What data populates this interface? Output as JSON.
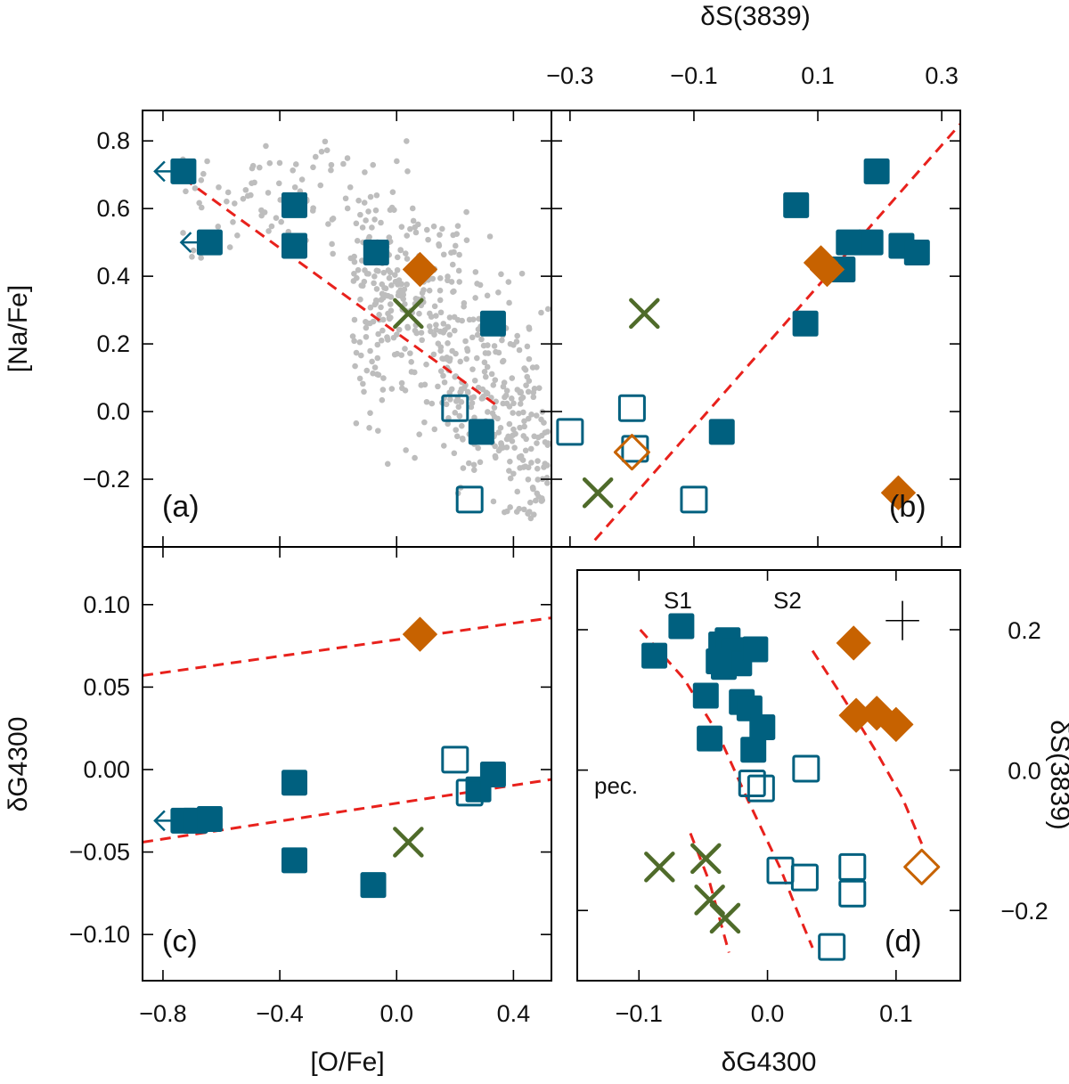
{
  "colors": {
    "blue": "#00607F",
    "orange": "#C76200",
    "green": "#4F6B2A",
    "grey": "#BDBDBD",
    "fit": "#E8211C",
    "frame": "#000000"
  },
  "chart_data": [
    {
      "id": "a",
      "type": "scatter",
      "panel_label": "(a)",
      "xlabel": "[O/Fe]",
      "ylabel": "[Na/Fe]",
      "xlim": [
        -0.87,
        0.53
      ],
      "ylim": [
        -0.4,
        0.89
      ],
      "xticks": [
        -0.8,
        -0.4,
        0.0,
        0.4
      ],
      "xtick_labels": [
        "−0.8",
        "−0.4",
        "0.0",
        "0.4"
      ],
      "yticks": [
        -0.2,
        0.0,
        0.2,
        0.4,
        0.6,
        0.8
      ],
      "ytick_labels": [
        "−0.2",
        "0.0",
        "0.2",
        "0.4",
        "0.6",
        "0.8"
      ],
      "grid": false,
      "series": [
        {
          "marker": "dot",
          "color": "grey",
          "x": [],
          "y": []
        },
        {
          "marker": "filled-square",
          "color": "blue",
          "x": [
            -0.73,
            -0.64,
            -0.35,
            -0.35,
            -0.07,
            0.29,
            0.33
          ],
          "y": [
            0.71,
            0.5,
            0.61,
            0.49,
            0.47,
            -0.06,
            0.26
          ]
        },
        {
          "marker": "open-square",
          "color": "blue",
          "x": [
            0.2,
            0.25
          ],
          "y": [
            0.01,
            -0.26
          ]
        },
        {
          "marker": "filled-diamond",
          "color": "orange",
          "x": [
            0.08
          ],
          "y": [
            0.42
          ]
        },
        {
          "marker": "cross",
          "color": "green",
          "x": [
            0.04
          ],
          "y": [
            0.29
          ]
        }
      ],
      "upper_limits": [
        {
          "x": -0.73,
          "y": 0.71
        },
        {
          "x": -0.64,
          "y": 0.5
        }
      ],
      "fit_lines": [
        [
          [
            -0.73,
            0.69
          ],
          [
            0.34,
            0.02
          ]
        ]
      ]
    },
    {
      "id": "b",
      "type": "scatter",
      "panel_label": "(b)",
      "xlabel_top": "δS(3839)",
      "xlim": [
        -0.33,
        0.33
      ],
      "ylim": [
        -0.4,
        0.89
      ],
      "xticks": [
        -0.3,
        -0.1,
        0.1,
        0.3
      ],
      "xtick_labels": [
        "−0.3",
        "−0.1",
        "0.1",
        "0.3"
      ],
      "grid": false,
      "series": [
        {
          "marker": "filled-square",
          "color": "blue",
          "x": [
            -0.055,
            0.065,
            0.08,
            0.14,
            0.185,
            0.195,
            0.235,
            0.26,
            0.15
          ],
          "y": [
            -0.06,
            0.61,
            0.26,
            0.42,
            0.5,
            0.71,
            0.49,
            0.47,
            0.5
          ]
        },
        {
          "marker": "open-square",
          "color": "blue",
          "x": [
            -0.3,
            -0.2,
            -0.195,
            -0.1
          ],
          "y": [
            -0.06,
            0.01,
            -0.11,
            -0.26
          ]
        },
        {
          "marker": "filled-diamond",
          "color": "orange",
          "x": [
            0.105,
            0.115,
            0.23
          ],
          "y": [
            0.44,
            0.42,
            -0.24
          ]
        },
        {
          "marker": "open-diamond",
          "color": "orange",
          "x": [
            -0.2
          ],
          "y": [
            -0.12
          ]
        },
        {
          "marker": "cross",
          "color": "green",
          "x": [
            -0.18,
            -0.255
          ],
          "y": [
            0.29,
            -0.24
          ]
        }
      ],
      "fit_lines": [
        [
          [
            -0.26,
            -0.38
          ],
          [
            0.33,
            0.85
          ]
        ]
      ]
    },
    {
      "id": "c",
      "type": "scatter",
      "panel_label": "(c)",
      "xlabel": "[O/Fe]",
      "ylabel": "δG4300",
      "xlim": [
        -0.87,
        0.53
      ],
      "ylim": [
        -0.128,
        0.135
      ],
      "xticks": [
        -0.8,
        -0.4,
        0.0,
        0.4
      ],
      "xtick_labels": [
        "−0.8",
        "−0.4",
        "0.0",
        "0.4"
      ],
      "yticks": [
        -0.1,
        -0.05,
        0.0,
        0.05,
        0.1
      ],
      "ytick_labels": [
        "−0.10",
        "−0.05",
        "0.00",
        "0.05",
        "0.10"
      ],
      "grid": false,
      "series": [
        {
          "marker": "filled-square",
          "color": "blue",
          "x": [
            -0.73,
            -0.69,
            -0.64,
            -0.35,
            -0.35,
            -0.08,
            0.28,
            0.33
          ],
          "y": [
            -0.031,
            -0.031,
            -0.03,
            -0.008,
            -0.055,
            -0.07,
            -0.012,
            -0.003
          ]
        },
        {
          "marker": "open-square",
          "color": "blue",
          "x": [
            0.2,
            0.25
          ],
          "y": [
            0.006,
            -0.014
          ]
        },
        {
          "marker": "filled-diamond",
          "color": "orange",
          "x": [
            0.08
          ],
          "y": [
            0.082
          ]
        },
        {
          "marker": "cross",
          "color": "green",
          "x": [
            0.04
          ],
          "y": [
            -0.044
          ]
        }
      ],
      "upper_limits": [
        {
          "x": -0.73,
          "y": -0.031
        }
      ],
      "fit_lines": [
        [
          [
            -0.87,
            0.057
          ],
          [
            0.53,
            0.092
          ]
        ],
        [
          [
            -0.87,
            -0.044
          ],
          [
            0.53,
            -0.006
          ]
        ]
      ]
    },
    {
      "id": "d",
      "type": "scatter",
      "panel_label": "(d)",
      "xlabel": "δG4300",
      "ylabel_right": "δS(3839)",
      "xlim": [
        -0.148,
        0.15
      ],
      "ylim": [
        -0.3,
        0.285
      ],
      "xticks": [
        -0.1,
        0.0,
        0.1
      ],
      "xtick_labels": [
        "−0.1",
        "0.0",
        "0.1"
      ],
      "yticks": [
        -0.2,
        0.0,
        0.2
      ],
      "ytick_labels": [
        "−0.2",
        "0.0",
        "0.2"
      ],
      "grid": false,
      "annotations": [
        "S1",
        "S2",
        "pec."
      ],
      "error_bar": {
        "x": 0.105,
        "y": 0.213,
        "dx": 0.013,
        "dy": 0.028
      },
      "series": [
        {
          "marker": "filled-square",
          "color": "blue",
          "x": [
            -0.088,
            -0.067,
            -0.048,
            -0.045,
            -0.036,
            -0.034,
            -0.031,
            -0.026,
            -0.022,
            -0.02,
            -0.014,
            -0.011,
            -0.0095,
            -0.004,
            -0.038
          ],
          "y": [
            0.163,
            0.205,
            0.106,
            0.045,
            0.179,
            0.147,
            0.185,
            0.171,
            0.152,
            0.097,
            0.088,
            0.029,
            0.172,
            0.061,
            0.155
          ]
        },
        {
          "marker": "open-square",
          "color": "blue",
          "x": [
            -0.012,
            -0.005,
            0.01,
            0.029,
            0.03,
            0.05,
            0.066,
            0.066
          ],
          "y": [
            -0.019,
            -0.026,
            -0.143,
            -0.153,
            0.002,
            -0.252,
            -0.138,
            -0.176
          ]
        },
        {
          "marker": "filled-diamond",
          "color": "orange",
          "x": [
            0.067,
            0.069,
            0.085,
            0.1
          ],
          "y": [
            0.181,
            0.078,
            0.081,
            0.065
          ]
        },
        {
          "marker": "open-diamond",
          "color": "orange",
          "x": [
            0.12
          ],
          "y": [
            -0.138
          ]
        },
        {
          "marker": "cross",
          "color": "green",
          "x": [
            -0.084,
            -0.048,
            -0.045,
            -0.033
          ],
          "y": [
            -0.138,
            -0.126,
            -0.185,
            -0.211
          ]
        }
      ],
      "fit_lines": [
        [
          [
            -0.099,
            0.2
          ],
          [
            -0.065,
            0.13
          ],
          [
            -0.038,
            0.05
          ],
          [
            -0.016,
            -0.04
          ],
          [
            0.01,
            -0.14
          ],
          [
            0.023,
            -0.2
          ],
          [
            0.035,
            -0.253
          ]
        ],
        [
          [
            0.035,
            0.17
          ],
          [
            0.06,
            0.1
          ],
          [
            0.085,
            0.025
          ],
          [
            0.105,
            -0.04
          ],
          [
            0.12,
            -0.105
          ]
        ],
        [
          [
            -0.06,
            -0.09
          ],
          [
            -0.045,
            -0.16
          ],
          [
            -0.03,
            -0.26
          ]
        ]
      ]
    }
  ]
}
